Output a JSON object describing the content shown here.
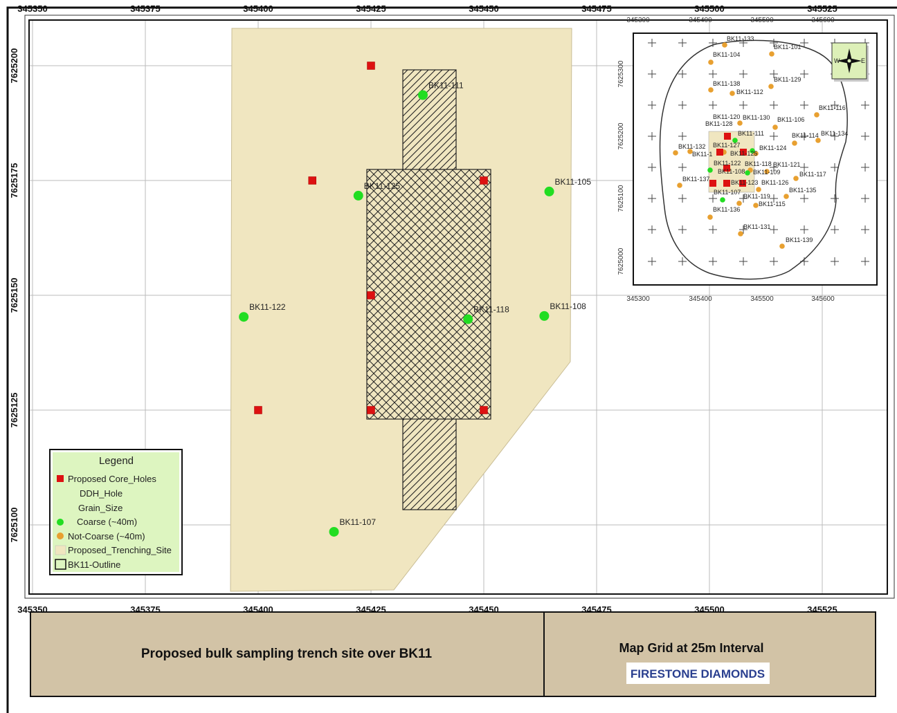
{
  "map": {
    "main_x_ticks": [
      "345350",
      "345375",
      "345400",
      "345425",
      "345450",
      "345475",
      "345500",
      "345525"
    ],
    "main_y_ticks": [
      "7625200",
      "7625175",
      "7625150",
      "7625125",
      "7625100"
    ],
    "points": [
      {
        "name": "BK11-111",
        "x": 345436.5,
        "y": 7625193.6,
        "type": "coarse"
      },
      {
        "name": "BK11-125",
        "x": 345422.2,
        "y": 7625171.7,
        "type": "coarse"
      },
      {
        "name": "BK11-105",
        "x": 345464.5,
        "y": 7625172.6,
        "type": "coarse"
      },
      {
        "name": "BK11-122",
        "x": 345396.8,
        "y": 7625145.3,
        "type": "coarse"
      },
      {
        "name": "BK11-118",
        "x": 345446.5,
        "y": 7625144.8,
        "type": "coarse"
      },
      {
        "name": "BK11-108",
        "x": 345463.4,
        "y": 7625145.5,
        "type": "coarse"
      },
      {
        "name": "BK11-107",
        "x": 345416.8,
        "y": 7625098.5,
        "type": "coarse"
      }
    ],
    "core_holes": [
      {
        "x": 345425,
        "y": 7625200
      },
      {
        "x": 345412,
        "y": 7625175
      },
      {
        "x": 345450,
        "y": 7625175
      },
      {
        "x": 345425,
        "y": 7625150
      },
      {
        "x": 345400,
        "y": 7625125
      },
      {
        "x": 345425,
        "y": 7625125
      },
      {
        "x": 345450,
        "y": 7625125
      }
    ]
  },
  "inset": {
    "x_ticks": [
      "345300",
      "345400",
      "345500",
      "345600"
    ],
    "y_ticks": [
      "7625300",
      "7625200",
      "7625100",
      "7625000"
    ],
    "labels": [
      "BK11-133",
      "BK11-101",
      "BK11-104",
      "BK11-129",
      "BK11-138",
      "BK11-112",
      "BK11-116",
      "BK11-120",
      "BK11-130",
      "BK11-106",
      "BK11-128",
      "BK11-111",
      "BK11-114",
      "BK11-134",
      "BK11-132",
      "BK11-127",
      "BK11-124",
      "BK11-1",
      "BK11-125",
      "BK11-122",
      "BK11-118",
      "BK11-121",
      "BK11-108",
      "BK11-109",
      "BK11-117",
      "BK11-137",
      "BK11-123",
      "BK11-126",
      "BK11-107",
      "BK11-135",
      "BK11-119",
      "BK11-115",
      "BK11-136",
      "BK11-131",
      "BK11-139"
    ],
    "north_arrow": {
      "left": "W",
      "right": "E"
    }
  },
  "legend": {
    "title": "Legend",
    "items": [
      {
        "label": "Proposed Core_Holes",
        "symbol": "red-square"
      },
      {
        "label": "DDH_Hole",
        "symbol": "none"
      },
      {
        "label": "Grain_Size",
        "symbol": "none"
      },
      {
        "label": "Coarse (~40m)",
        "symbol": "green-circle"
      },
      {
        "label": "Not-Coarse (~40m)",
        "symbol": "orange-circle"
      },
      {
        "label": "Proposed_Trenching_Site",
        "symbol": "tan-square"
      },
      {
        "label": "BK11-Outline",
        "symbol": "outline-square"
      }
    ]
  },
  "title_block": {
    "title": "Proposed bulk sampling trench site over BK11",
    "grid_note": "Map Grid at 25m Interval",
    "logo": "FIRESTONE DIAMONDS"
  },
  "colors": {
    "trench_fill": "#f0e6c0",
    "legend_bg": "#ddf5c0",
    "title_bg": "#d2c3a6",
    "coarse": "#22dd22",
    "not_coarse": "#e8a030",
    "core_hole": "#dd1111"
  }
}
